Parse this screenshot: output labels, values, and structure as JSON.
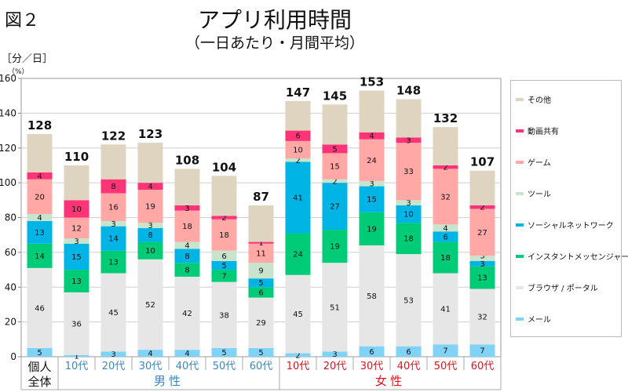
{
  "figure_label": "図２",
  "chart_data": {
    "type": "bar",
    "stacked": true,
    "title": "アプリ利用時間",
    "subtitle": "（一日あたり・月間平均）",
    "ylabel": "［分／日］",
    "ylabel_note": "（%）",
    "ylim": [
      0,
      160
    ],
    "yticks": [
      0,
      20,
      40,
      60,
      80,
      100,
      120,
      140,
      160
    ],
    "grid": true,
    "legend_position": "right",
    "categories": [
      "個人全体",
      "10代",
      "20代",
      "30代",
      "40代",
      "50代",
      "60代",
      "10代",
      "20代",
      "30代",
      "40代",
      "50代",
      "60代"
    ],
    "category_lines": [
      [
        "個人",
        "全体"
      ],
      [
        "10代"
      ],
      [
        "20代"
      ],
      [
        "30代"
      ],
      [
        "40代"
      ],
      [
        "50代"
      ],
      [
        "60代"
      ],
      [
        "10代"
      ],
      [
        "20代"
      ],
      [
        "30代"
      ],
      [
        "40代"
      ],
      [
        "50代"
      ],
      [
        "60代"
      ]
    ],
    "groups": [
      {
        "label": "",
        "start": 0,
        "end": 0,
        "color": "#111111"
      },
      {
        "label": "男性",
        "start": 1,
        "end": 6,
        "color": "#3a86c8"
      },
      {
        "label": "女性",
        "start": 7,
        "end": 12,
        "color": "#e0141e"
      }
    ],
    "totals": [
      128,
      110,
      122,
      123,
      108,
      104,
      87,
      147,
      145,
      153,
      148,
      132,
      107
    ],
    "series": [
      {
        "name": "メール",
        "color": "#7fd3f7",
        "values": [
          5,
          1,
          3,
          4,
          4,
          5,
          5,
          2,
          3,
          6,
          6,
          7,
          7
        ]
      },
      {
        "name": "ブラウザ / ポータル",
        "color": "#e6e6e6",
        "values": [
          46,
          36,
          45,
          52,
          42,
          38,
          29,
          45,
          51,
          58,
          53,
          41,
          32
        ]
      },
      {
        "name": "インスタントメッセンジャー",
        "color": "#00cc77",
        "values": [
          14,
          13,
          13,
          10,
          8,
          7,
          6,
          24,
          19,
          19,
          18,
          18,
          13
        ]
      },
      {
        "name": "ソーシャルネットワーク",
        "color": "#00b4e6",
        "values": [
          13,
          15,
          14,
          8,
          8,
          5,
          5,
          41,
          27,
          15,
          10,
          6,
          3
        ]
      },
      {
        "name": "ツール",
        "color": "#c8e4cc",
        "values": [
          4,
          3,
          3,
          3,
          4,
          6,
          9,
          2,
          2,
          3,
          3,
          4,
          3
        ]
      },
      {
        "name": "ゲーム",
        "color": "#ffa8a6",
        "values": [
          20,
          12,
          16,
          19,
          18,
          18,
          11,
          10,
          15,
          24,
          33,
          32,
          27
        ]
      },
      {
        "name": "動画共有",
        "color": "#ff3377",
        "values": [
          4,
          10,
          8,
          4,
          3,
          2,
          1,
          6,
          5,
          4,
          3,
          2,
          2
        ]
      },
      {
        "name": "その他",
        "color": "#ded4bf",
        "values": [
          22,
          20,
          20,
          23,
          21,
          23,
          21,
          17,
          23,
          24,
          22,
          22,
          20
        ]
      }
    ],
    "legend_order": [
      "その他",
      "動画共有",
      "ゲーム",
      "ツール",
      "ソーシャルネットワーク",
      "インスタントメッセンジャー",
      "ブラウザ / ポータル",
      "メール"
    ]
  }
}
